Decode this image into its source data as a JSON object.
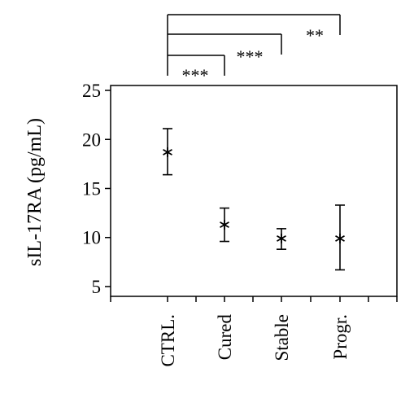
{
  "chart_data": {
    "type": "scatter",
    "title": "",
    "xlabel": "",
    "ylabel": "sIL-17RA (pg/mL)",
    "categories": [
      "CTRL.",
      "Cured",
      "Stable",
      "Progr."
    ],
    "series": [
      {
        "values": [
          18.7,
          11.3,
          9.9,
          9.9
        ],
        "error_low": [
          16.4,
          9.6,
          8.8,
          6.7
        ],
        "error_high": [
          21.1,
          13.0,
          10.9,
          13.3
        ]
      }
    ],
    "ylim": [
      4,
      25.5
    ],
    "yticks": [
      "5",
      "10",
      "15",
      "20",
      "25"
    ],
    "yticks_values": [
      5,
      10,
      15,
      20,
      25
    ],
    "marker": "*",
    "grid": false,
    "legend": "none",
    "significance": [
      {
        "from": "CTRL.",
        "to": "Cured",
        "label": "***"
      },
      {
        "from": "CTRL.",
        "to": "Stable",
        "label": "***"
      },
      {
        "from": "CTRL.",
        "to": "Progr.",
        "label": "**"
      }
    ]
  }
}
